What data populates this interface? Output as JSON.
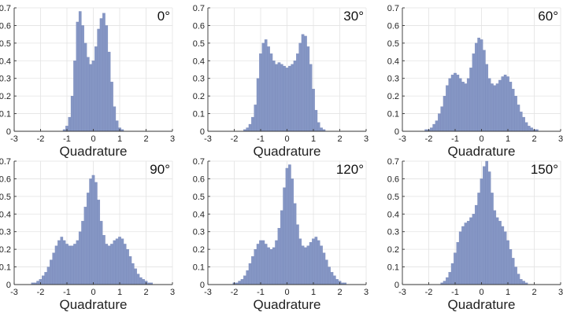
{
  "chart_data": [
    {
      "type": "bar",
      "title": "0°",
      "xlabel": "Quadrature",
      "ylabel": "",
      "xlim": [
        -3,
        3
      ],
      "ylim": [
        0,
        0.7
      ],
      "xticks": [
        "-3",
        "-2",
        "-1",
        "0",
        "1",
        "2",
        "3"
      ],
      "yticks": [
        "0",
        "0.1",
        "0.2",
        "0.3",
        "0.4",
        "0.5",
        "0.6",
        "0.7"
      ],
      "grid": true,
      "x": [
        -1.1,
        -1.0,
        -0.9,
        -0.8,
        -0.7,
        -0.6,
        -0.5,
        -0.4,
        -0.3,
        -0.2,
        -0.1,
        0.0,
        0.1,
        0.2,
        0.3,
        0.4,
        0.5,
        0.6,
        0.7,
        0.8,
        0.9,
        1.0,
        1.1
      ],
      "values": [
        0.01,
        0.03,
        0.08,
        0.2,
        0.4,
        0.62,
        0.68,
        0.6,
        0.5,
        0.42,
        0.38,
        0.4,
        0.48,
        0.58,
        0.64,
        0.67,
        0.6,
        0.45,
        0.28,
        0.14,
        0.06,
        0.02,
        0.01
      ]
    },
    {
      "type": "bar",
      "title": "30°",
      "xlabel": "Quadrature",
      "ylabel": "",
      "xlim": [
        -3,
        3
      ],
      "ylim": [
        0,
        0.7
      ],
      "xticks": [
        "-3",
        "-2",
        "-1",
        "0",
        "1",
        "2",
        "3"
      ],
      "yticks": [
        "0",
        "0.1",
        "0.2",
        "0.3",
        "0.4",
        "0.5",
        "0.6",
        "0.7"
      ],
      "grid": true,
      "x": [
        -1.6,
        -1.5,
        -1.4,
        -1.3,
        -1.2,
        -1.1,
        -1.0,
        -0.9,
        -0.8,
        -0.7,
        -0.6,
        -0.5,
        -0.4,
        -0.3,
        -0.2,
        -0.1,
        0.0,
        0.1,
        0.2,
        0.3,
        0.4,
        0.5,
        0.6,
        0.7,
        0.8,
        0.9,
        1.0,
        1.1,
        1.2,
        1.3,
        1.4
      ],
      "values": [
        0.01,
        0.02,
        0.04,
        0.08,
        0.15,
        0.3,
        0.44,
        0.5,
        0.52,
        0.48,
        0.44,
        0.4,
        0.38,
        0.39,
        0.38,
        0.37,
        0.36,
        0.37,
        0.38,
        0.4,
        0.44,
        0.5,
        0.55,
        0.54,
        0.48,
        0.38,
        0.24,
        0.12,
        0.05,
        0.02,
        0.01
      ]
    },
    {
      "type": "bar",
      "title": "60°",
      "xlabel": "Quadrature",
      "ylabel": "",
      "xlim": [
        -3,
        3
      ],
      "ylim": [
        0,
        0.7
      ],
      "xticks": [
        "-3",
        "-2",
        "-1",
        "0",
        "1",
        "2",
        "3"
      ],
      "yticks": [
        "0",
        "0.1",
        "0.2",
        "0.3",
        "0.4",
        "0.5",
        "0.6",
        "0.7"
      ],
      "grid": true,
      "x": [
        -2.1,
        -2.0,
        -1.9,
        -1.8,
        -1.7,
        -1.6,
        -1.5,
        -1.4,
        -1.3,
        -1.2,
        -1.1,
        -1.0,
        -0.9,
        -0.8,
        -0.7,
        -0.6,
        -0.5,
        -0.4,
        -0.3,
        -0.2,
        -0.1,
        0.0,
        0.1,
        0.2,
        0.3,
        0.4,
        0.5,
        0.6,
        0.7,
        0.8,
        0.9,
        1.0,
        1.1,
        1.2,
        1.3,
        1.4,
        1.5,
        1.6,
        1.7,
        1.8,
        1.9,
        2.0,
        2.1
      ],
      "values": [
        0.01,
        0.01,
        0.02,
        0.04,
        0.06,
        0.1,
        0.14,
        0.2,
        0.26,
        0.3,
        0.32,
        0.33,
        0.32,
        0.3,
        0.28,
        0.27,
        0.3,
        0.36,
        0.44,
        0.5,
        0.53,
        0.52,
        0.46,
        0.38,
        0.3,
        0.27,
        0.26,
        0.27,
        0.29,
        0.31,
        0.32,
        0.31,
        0.28,
        0.24,
        0.2,
        0.15,
        0.11,
        0.08,
        0.05,
        0.03,
        0.02,
        0.01,
        0.01
      ]
    },
    {
      "type": "bar",
      "title": "90°",
      "xlabel": "Quadrature",
      "ylabel": "",
      "xlim": [
        -3,
        3
      ],
      "ylim": [
        0,
        0.7
      ],
      "xticks": [
        "-3",
        "-2",
        "-1",
        "0",
        "1",
        "2",
        "3"
      ],
      "yticks": [
        "0",
        "0.1",
        "0.2",
        "0.3",
        "0.4",
        "0.5",
        "0.6",
        "0.7"
      ],
      "grid": true,
      "x": [
        -2.3,
        -2.2,
        -2.1,
        -2.0,
        -1.9,
        -1.8,
        -1.7,
        -1.6,
        -1.5,
        -1.4,
        -1.3,
        -1.2,
        -1.1,
        -1.0,
        -0.9,
        -0.8,
        -0.7,
        -0.6,
        -0.5,
        -0.4,
        -0.3,
        -0.2,
        -0.1,
        0.0,
        0.1,
        0.2,
        0.3,
        0.4,
        0.5,
        0.6,
        0.7,
        0.8,
        0.9,
        1.0,
        1.1,
        1.2,
        1.3,
        1.4,
        1.5,
        1.6,
        1.7,
        1.8,
        1.9,
        2.0,
        2.1,
        2.2
      ],
      "values": [
        0.01,
        0.01,
        0.02,
        0.03,
        0.05,
        0.07,
        0.1,
        0.14,
        0.18,
        0.22,
        0.25,
        0.27,
        0.25,
        0.23,
        0.22,
        0.22,
        0.23,
        0.25,
        0.3,
        0.36,
        0.44,
        0.52,
        0.6,
        0.62,
        0.58,
        0.48,
        0.36,
        0.28,
        0.23,
        0.22,
        0.23,
        0.25,
        0.26,
        0.27,
        0.26,
        0.23,
        0.2,
        0.16,
        0.12,
        0.09,
        0.06,
        0.04,
        0.03,
        0.02,
        0.01,
        0.01
      ]
    },
    {
      "type": "bar",
      "title": "120°",
      "xlabel": "Quadrature",
      "ylabel": "",
      "xlim": [
        -3,
        3
      ],
      "ylim": [
        0,
        0.7
      ],
      "xticks": [
        "-3",
        "-2",
        "-1",
        "0",
        "1",
        "2",
        "3"
      ],
      "yticks": [
        "0",
        "0.1",
        "0.2",
        "0.3",
        "0.4",
        "0.5",
        "0.6",
        "0.7"
      ],
      "grid": true,
      "x": [
        -2.0,
        -1.9,
        -1.8,
        -1.7,
        -1.6,
        -1.5,
        -1.4,
        -1.3,
        -1.2,
        -1.1,
        -1.0,
        -0.9,
        -0.8,
        -0.7,
        -0.6,
        -0.5,
        -0.4,
        -0.3,
        -0.2,
        -0.1,
        0.0,
        0.1,
        0.2,
        0.3,
        0.4,
        0.5,
        0.6,
        0.7,
        0.8,
        0.9,
        1.0,
        1.1,
        1.2,
        1.3,
        1.4,
        1.5,
        1.6,
        1.7,
        1.8,
        1.9,
        2.0,
        2.1,
        2.2
      ],
      "values": [
        0.01,
        0.01,
        0.02,
        0.03,
        0.05,
        0.08,
        0.12,
        0.16,
        0.2,
        0.23,
        0.25,
        0.25,
        0.23,
        0.21,
        0.2,
        0.21,
        0.25,
        0.32,
        0.42,
        0.55,
        0.66,
        0.68,
        0.6,
        0.46,
        0.34,
        0.26,
        0.22,
        0.21,
        0.22,
        0.24,
        0.26,
        0.27,
        0.25,
        0.22,
        0.18,
        0.14,
        0.1,
        0.07,
        0.05,
        0.03,
        0.02,
        0.01,
        0.01
      ]
    },
    {
      "type": "bar",
      "title": "150°",
      "xlabel": "Quadrature",
      "ylabel": "",
      "xlim": [
        -3,
        3
      ],
      "ylim": [
        0,
        0.7
      ],
      "xticks": [
        "-3",
        "-2",
        "-1",
        "0",
        "1",
        "2",
        "3"
      ],
      "yticks": [
        "0",
        "0.1",
        "0.2",
        "0.3",
        "0.4",
        "0.5",
        "0.6",
        "0.7"
      ],
      "grid": true,
      "x": [
        -1.5,
        -1.4,
        -1.3,
        -1.2,
        -1.1,
        -1.0,
        -0.9,
        -0.8,
        -0.7,
        -0.6,
        -0.5,
        -0.4,
        -0.3,
        -0.2,
        -0.1,
        0.0,
        0.1,
        0.2,
        0.3,
        0.4,
        0.5,
        0.6,
        0.7,
        0.8,
        0.9,
        1.0,
        1.1,
        1.2,
        1.3,
        1.4,
        1.5,
        1.6,
        1.7
      ],
      "values": [
        0.01,
        0.02,
        0.04,
        0.07,
        0.12,
        0.18,
        0.24,
        0.3,
        0.33,
        0.35,
        0.36,
        0.38,
        0.4,
        0.45,
        0.52,
        0.6,
        0.67,
        0.7,
        0.64,
        0.52,
        0.42,
        0.38,
        0.36,
        0.33,
        0.3,
        0.25,
        0.2,
        0.15,
        0.1,
        0.06,
        0.03,
        0.02,
        0.01
      ]
    }
  ],
  "style": {
    "bar_color": "#8596c4",
    "bar_edge": "#7686b8"
  }
}
